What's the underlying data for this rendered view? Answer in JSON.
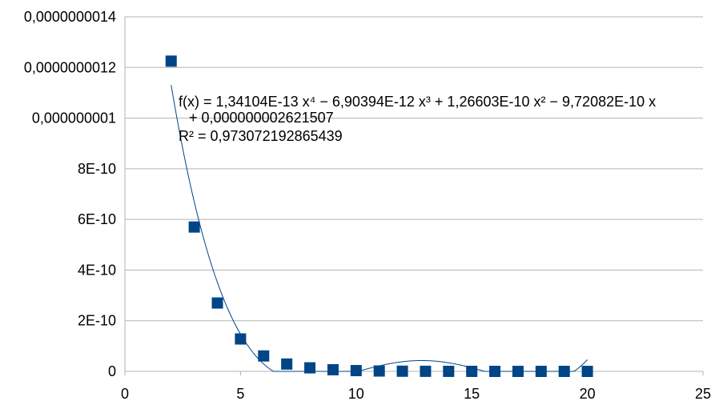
{
  "chart_data": {
    "type": "scatter",
    "title": "",
    "xlabel": "",
    "ylabel": "",
    "xlim": [
      0,
      25
    ],
    "ylim": [
      0,
      1.4e-09
    ],
    "x_ticks": [
      0,
      5,
      10,
      15,
      20,
      25
    ],
    "x_tick_labels": [
      "0",
      "5",
      "10",
      "15",
      "20",
      "25"
    ],
    "y_ticks": [
      0,
      2e-10,
      4e-10,
      6e-10,
      8e-10,
      1e-09,
      1.2e-09,
      1.4e-09
    ],
    "y_tick_labels": [
      "0",
      "2E-10",
      "4E-10",
      "6E-10",
      "8E-10",
      "0,000000001",
      "0,0000000012",
      "0,0000000014"
    ],
    "grid": "horizontal",
    "legend": "none",
    "series": [
      {
        "marker": "square",
        "color": "#004586",
        "x": [
          2,
          3,
          4,
          5,
          6,
          7,
          8,
          9,
          10,
          11,
          12,
          13,
          14,
          15,
          16,
          17,
          18,
          19,
          20
        ],
        "y": [
          1.225e-09,
          5.7e-10,
          2.7e-10,
          1.28e-10,
          6.1e-11,
          2.9e-11,
          1.4e-11,
          6.5e-12,
          3.1e-12,
          1.5e-12,
          7e-13,
          3.3e-13,
          1.6e-13,
          7.5e-14,
          3.6e-14,
          1.7e-14,
          8e-15,
          3.8e-15,
          1.8e-15
        ]
      }
    ],
    "trendline": {
      "type": "polynomial",
      "coefficients": [
        1.34104e-13,
        -6.90394e-12,
        1.26603e-10,
        -9.72082e-10,
        2.621507e-09
      ],
      "x_range": [
        2,
        20
      ],
      "color": "#004586",
      "equation_lines": [
        "f(x) = 1,34104E-13 x⁴ − 6,90394E-12 x³ + 1,26603E-10 x² − 9,72082E-10 x",
        "+ 0,000000002621507",
        "R² = 0,973072192865439"
      ]
    }
  }
}
